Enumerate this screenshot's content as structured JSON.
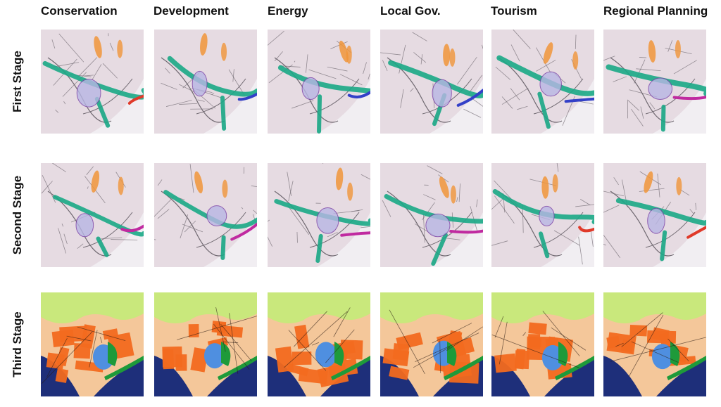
{
  "columns": [
    {
      "label": "Conservation"
    },
    {
      "label": "Development"
    },
    {
      "label": "Energy"
    },
    {
      "label": "Local Gov."
    },
    {
      "label": "Tourism"
    },
    {
      "label": "Regional Planning"
    }
  ],
  "rows": [
    {
      "label": "First Stage",
      "kind": "sketch"
    },
    {
      "label": "Second Stage",
      "kind": "sketch"
    },
    {
      "label": "Third Stage",
      "kind": "map"
    }
  ],
  "colors": {
    "paper": "#e6dbe2",
    "sketch_line": "#6f6870",
    "teal": "#1aa886",
    "orange_marker": "#f0953a",
    "purple_marker": "#7a3fa6",
    "blue_marker": "#3340c8",
    "magenta_marker": "#c02aa0",
    "red_marker": "#e03a2a",
    "map_orange": "#f26a1f",
    "map_green_light": "#c9e87c",
    "map_sea": "#1e2f7a",
    "map_blue": "#4f8fe0",
    "map_green": "#1e9a3a",
    "map_peach": "#f4c79a"
  }
}
